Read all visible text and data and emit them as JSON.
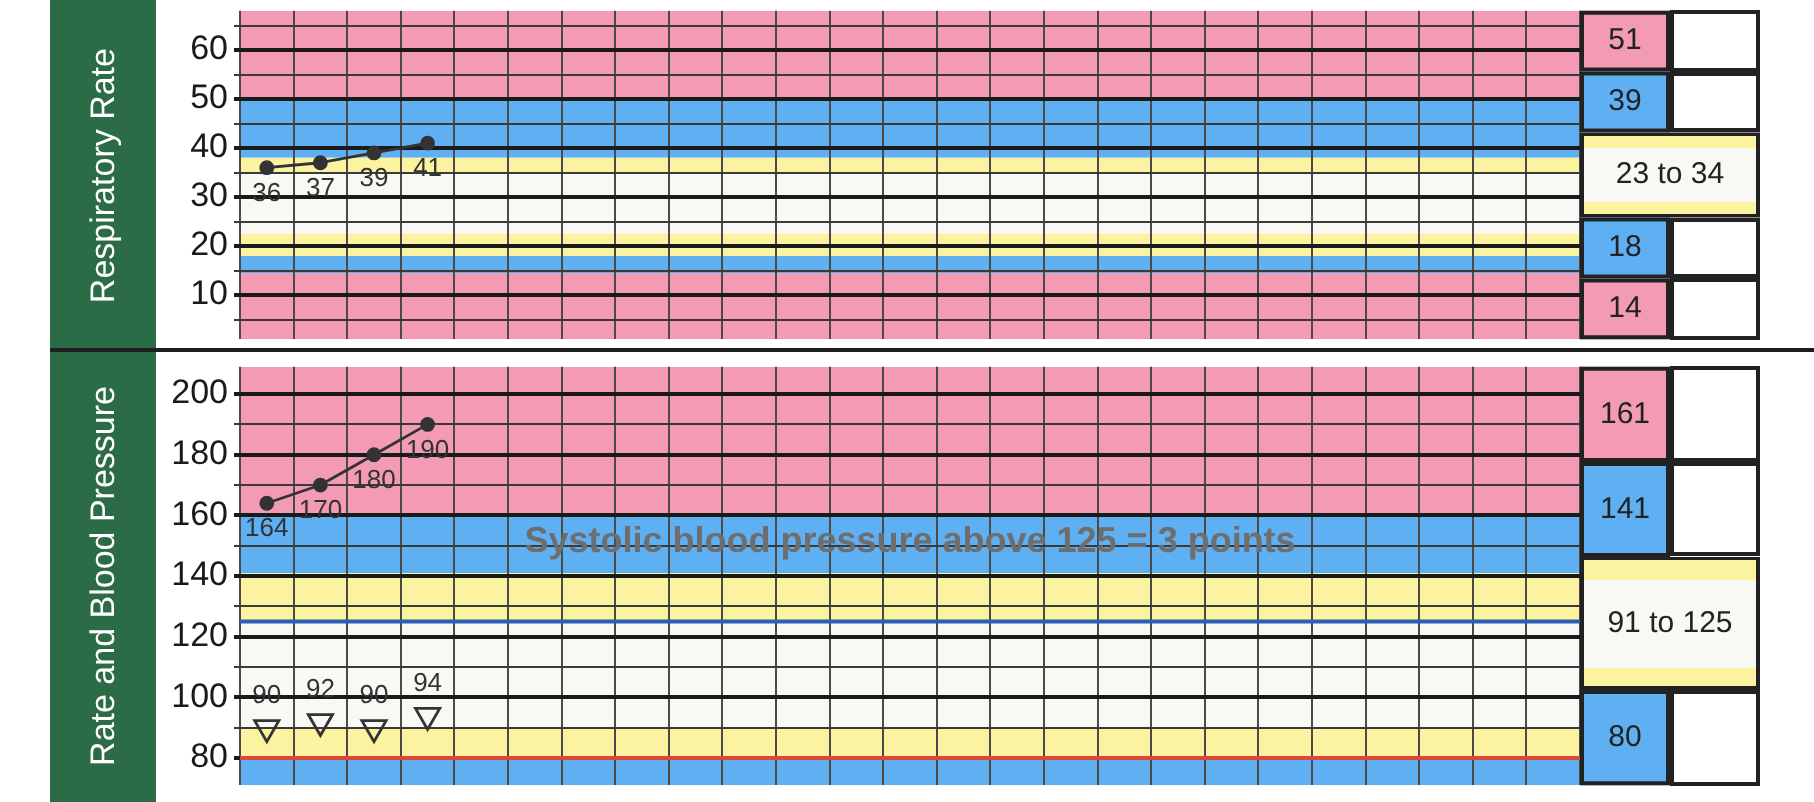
{
  "chart_data": [
    {
      "type": "line",
      "ylabel": "Respiratory Rate",
      "categories": [
        null,
        null,
        null,
        null,
        null,
        null,
        null,
        null,
        null,
        null,
        null,
        null,
        null,
        null,
        null,
        null,
        null,
        null,
        null,
        null,
        null,
        null,
        null,
        null,
        null
      ],
      "series": [
        {
          "color": "#333333",
          "values": [
            36,
            37,
            39,
            41,
            null,
            null,
            null,
            null,
            null,
            null,
            null,
            null,
            null,
            null,
            null,
            null,
            null,
            null,
            null,
            null,
            null,
            null,
            null,
            null,
            null
          ]
        }
      ],
      "ylim": [
        1,
        68
      ],
      "yticks": [
        {
          "value": 5,
          "label": null
        },
        10,
        {
          "value": 15,
          "label": null
        },
        20,
        {
          "value": 25,
          "label": null
        },
        30,
        {
          "value": 35,
          "label": null
        },
        40,
        {
          "value": 45,
          "label": null
        },
        50,
        {
          "value": 55,
          "label": null
        },
        60,
        {
          "value": 65,
          "label": null
        }
      ],
      "bands": [
        {
          "axis": "y",
          "from": 50,
          "to": 68,
          "color": "#f39ab4",
          "label": "51"
        },
        {
          "axis": "y",
          "from": 38,
          "to": 50,
          "color": "#5eb0f2",
          "label": "39"
        },
        {
          "axis": "y",
          "from": 35,
          "to": 38,
          "color": "#fbf3a0"
        },
        {
          "axis": "y",
          "from": 22.5,
          "to": 35,
          "color": "#f8f8f4",
          "label": "23 to 34"
        },
        {
          "axis": "y",
          "from": 18,
          "to": 22.5,
          "color": "#fbf3a0"
        },
        {
          "axis": "y",
          "from": 14.5,
          "to": 18,
          "color": "#5eb0f2",
          "label": "18"
        },
        {
          "axis": "y",
          "from": 1,
          "to": 14.5,
          "color": "#f39ab4",
          "label": "14"
        }
      ],
      "grid": true,
      "marker": "circle",
      "data_labels": true,
      "tick_labels": "y"
    },
    {
      "type": "line",
      "ylabel": "Rate and Blood Pressure",
      "categories": [
        null,
        null,
        null,
        null,
        null,
        null,
        null,
        null,
        null,
        null,
        null,
        null,
        null,
        null,
        null,
        null,
        null,
        null,
        null,
        null,
        null,
        null,
        null,
        null,
        null
      ],
      "series": [
        {
          "color": "#333333",
          "marker": "circle",
          "values": [
            164,
            170,
            180,
            190,
            null,
            null,
            null,
            null,
            null,
            null,
            null,
            null,
            null,
            null,
            null,
            null,
            null,
            null,
            null,
            null,
            null,
            null,
            null,
            null,
            null
          ]
        },
        {
          "type": "scatter",
          "color": "#333333",
          "marker": "triangle",
          "values": [
            90,
            92,
            90,
            94,
            null,
            null,
            null,
            null,
            null,
            null,
            null,
            null,
            null,
            null,
            null,
            null,
            null,
            null,
            null,
            null,
            null,
            null,
            null,
            null,
            null
          ]
        }
      ],
      "ylim": [
        71,
        209
      ],
      "yticks": [
        80,
        {
          "value": 90,
          "label": null
        },
        100,
        {
          "value": 110,
          "label": null
        },
        120,
        {
          "value": 130,
          "label": null
        },
        140,
        {
          "value": 150,
          "label": null
        },
        160,
        {
          "value": 170,
          "label": null
        },
        180,
        {
          "value": 190,
          "label": null
        },
        200
      ],
      "bands": [
        {
          "axis": "y",
          "from": 160,
          "to": 209,
          "color": "#f39ab4",
          "label": "161"
        },
        {
          "axis": "y",
          "from": 141,
          "to": 160,
          "color": "#5eb0f2",
          "label": "141"
        },
        {
          "axis": "y",
          "from": 125,
          "to": 141,
          "color": "#fbf3a0"
        },
        {
          "axis": "y",
          "from": 90,
          "to": 125,
          "color": "#f8f8f4",
          "label": "91 to 125"
        },
        {
          "axis": "y",
          "from": 80,
          "to": 90,
          "color": "#fbf3a0"
        },
        {
          "axis": "y",
          "from": 71,
          "to": 80,
          "color": "#5eb0f2",
          "label": "80"
        }
      ],
      "ref_lines": [
        {
          "axis": "y",
          "value": 125,
          "color": "#2a5fb8"
        },
        {
          "axis": "y",
          "value": 80,
          "color": "#e0443a"
        }
      ],
      "annotations": [
        "Systolic blood pressure above 125 = 3 points"
      ],
      "grid": true,
      "data_labels": true,
      "tick_labels": "y"
    }
  ]
}
